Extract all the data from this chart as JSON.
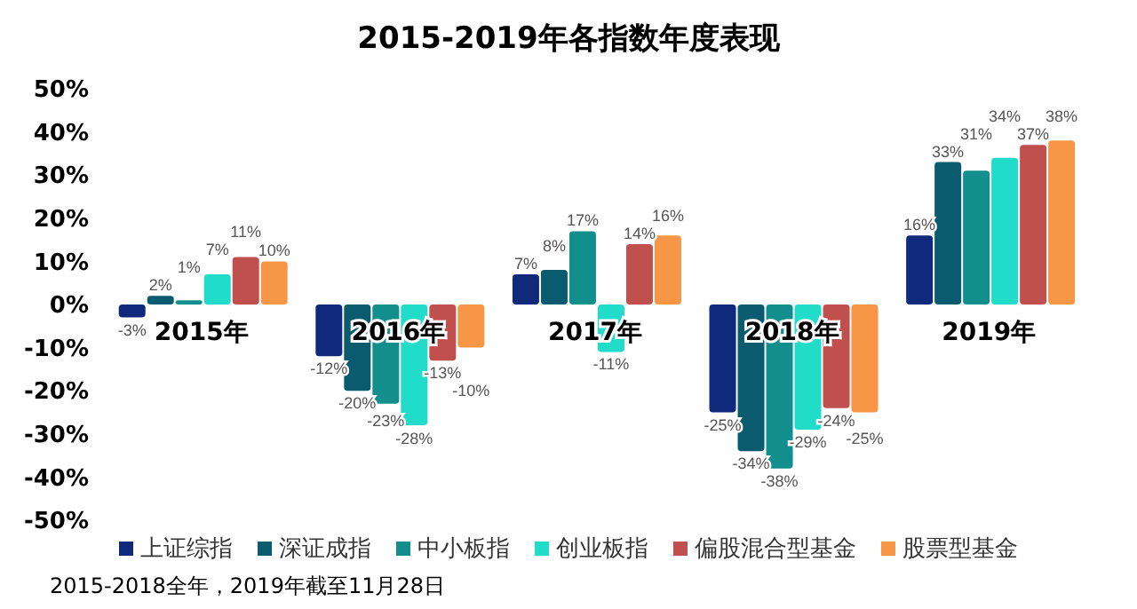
{
  "chart_data": {
    "type": "bar",
    "title": "2015-2019年各指数年度表现",
    "categories": [
      "2015年",
      "2016年",
      "2017年",
      "2018年",
      "2019年"
    ],
    "series": [
      {
        "name": "上证综指",
        "color": "#10297a",
        "values": [
          -3,
          -12,
          7,
          -25,
          16
        ],
        "value_labels": [
          "-3%",
          "-12%",
          "7%",
          "-25%",
          "16%"
        ]
      },
      {
        "name": "深证成指",
        "color": "#0a5b6d",
        "values": [
          2,
          -20,
          8,
          -34,
          33
        ],
        "value_labels": [
          "2%",
          "-20%",
          "8%",
          "-34%",
          "33%"
        ]
      },
      {
        "name": "中小板指",
        "color": "#128f8c",
        "values": [
          1,
          -23,
          17,
          -38,
          31
        ],
        "value_labels": [
          "1%",
          "-23%",
          "17%",
          "-38%",
          "31%"
        ]
      },
      {
        "name": "创业板指",
        "color": "#20dcc8",
        "values": [
          7,
          -28,
          -11,
          -29,
          34
        ],
        "value_labels": [
          "7%",
          "-28%",
          "-11%",
          "-29%",
          "34%"
        ]
      },
      {
        "name": "偏股混合型基金",
        "color": "#c0504d",
        "values": [
          11,
          -13,
          14,
          -24,
          37
        ],
        "value_labels": [
          "11%",
          "-13%",
          "14%",
          "-24%",
          "37%"
        ]
      },
      {
        "name": "股票型基金",
        "color": "#f79646",
        "values": [
          10,
          -10,
          16,
          -25,
          38
        ],
        "value_labels": [
          "10%",
          "-10%",
          "16%",
          "-25%",
          "38%"
        ]
      }
    ],
    "ylim": [
      -50,
      50
    ],
    "yticks": [
      {
        "value": -50,
        "label": "-50%"
      },
      {
        "value": -40,
        "label": "-40%"
      },
      {
        "value": -30,
        "label": "-30%"
      },
      {
        "value": -20,
        "label": "-20%"
      },
      {
        "value": -10,
        "label": "-10%"
      },
      {
        "value": 0,
        "label": "0%"
      },
      {
        "value": 10,
        "label": "10%"
      },
      {
        "value": 20,
        "label": "20%"
      },
      {
        "value": 30,
        "label": "30%"
      },
      {
        "value": 40,
        "label": "40%"
      },
      {
        "value": 50,
        "label": "50%"
      }
    ],
    "legend": "bottom",
    "grid": false,
    "annotations": [
      "2015-2018全年，2019年截至11月28日"
    ]
  }
}
